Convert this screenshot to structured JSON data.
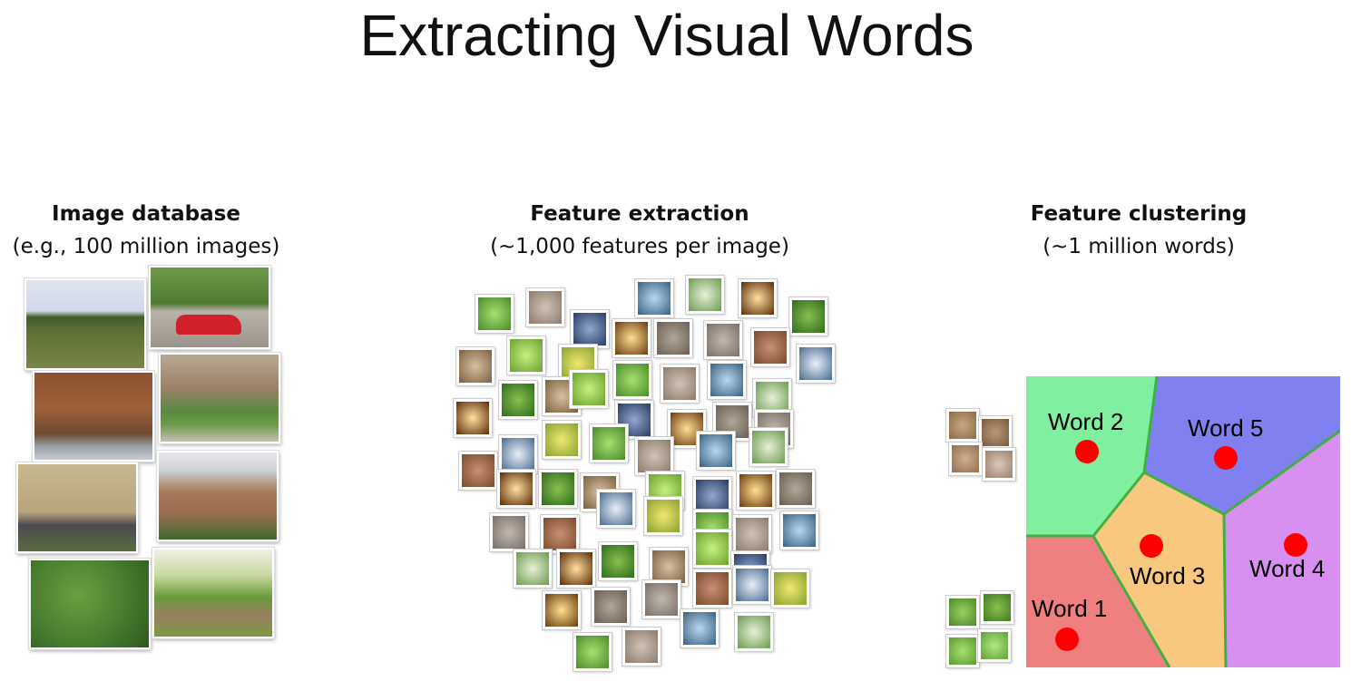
{
  "slide": {
    "title": "Extracting Visual Words"
  },
  "columns": [
    {
      "heading": "Image database",
      "subheading": "(e.g., 100 million images)"
    },
    {
      "heading": "Feature extraction",
      "subheading": "(~1,000 features per image)"
    },
    {
      "heading": "Feature clustering",
      "subheading": "(~1 million words)"
    }
  ],
  "clusters": {
    "words": [
      "Word 1",
      "Word 2",
      "Word 3",
      "Word 4",
      "Word 5"
    ],
    "colors": {
      "word1": "#f08080",
      "word2": "#80f0a0",
      "word3": "#f8c880",
      "word4": "#d890f0",
      "word5": "#8080f0",
      "border": "#40b040",
      "center": "#ff0000"
    }
  }
}
